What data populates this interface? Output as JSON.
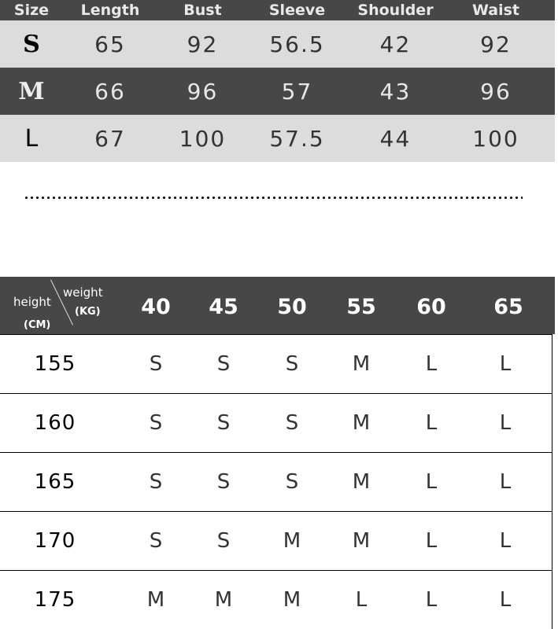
{
  "measurements": {
    "headers": [
      "Size",
      "Length",
      "Bust",
      "Sleeve",
      "Shoulder",
      "Waist"
    ],
    "rows": [
      [
        "S",
        "65",
        "92",
        "56.5",
        "42",
        "92"
      ],
      [
        "M",
        "66",
        "96",
        "57",
        "43",
        "96"
      ],
      [
        "L",
        "67",
        "100",
        "57.5",
        "44",
        "100"
      ]
    ],
    "colors": {
      "dark": "#474747",
      "light": "#dcdcdc"
    }
  },
  "recommendation": {
    "height_label": "height",
    "height_unit": "(CM)",
    "weight_label": "weight",
    "weight_unit": "(KG)",
    "weights": [
      "40",
      "45",
      "50",
      "55",
      "60",
      "65"
    ],
    "rows": [
      {
        "height": "155",
        "sizes": [
          "S",
          "S",
          "S",
          "M",
          "L",
          "L"
        ]
      },
      {
        "height": "160",
        "sizes": [
          "S",
          "S",
          "S",
          "M",
          "L",
          "L"
        ]
      },
      {
        "height": "165",
        "sizes": [
          "S",
          "S",
          "S",
          "M",
          "L",
          "L"
        ]
      },
      {
        "height": "170",
        "sizes": [
          "S",
          "S",
          "M",
          "M",
          "L",
          "L"
        ]
      },
      {
        "height": "175",
        "sizes": [
          "M",
          "M",
          "M",
          "L",
          "L",
          "L"
        ]
      }
    ]
  }
}
